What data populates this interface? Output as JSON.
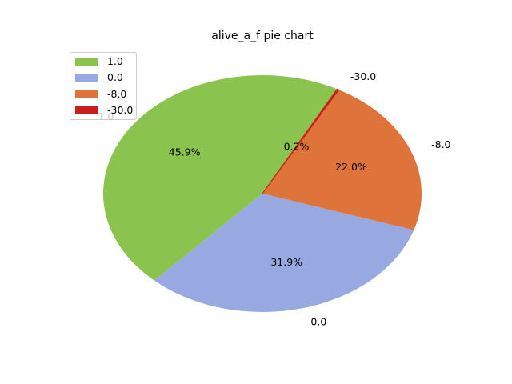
{
  "chart_data": {
    "type": "pie",
    "title": "alive_a_f pie chart",
    "categories": [
      "1.0",
      "0.0",
      "-8.0",
      "-30.0"
    ],
    "values": [
      45.9,
      31.9,
      22.0,
      0.2
    ],
    "pct_labels": [
      "45.9%",
      "31.9%",
      "22.0%",
      "0.2%"
    ],
    "colors": [
      "#8bc34f",
      "#98a9e2",
      "#df743b",
      "#c8201e"
    ],
    "start_angle_deg": 62,
    "direction": "counterclockwise",
    "legend": {
      "position": "upper-left",
      "entries": [
        "1.0",
        "0.0",
        "-8.0",
        "-30.0"
      ]
    }
  }
}
